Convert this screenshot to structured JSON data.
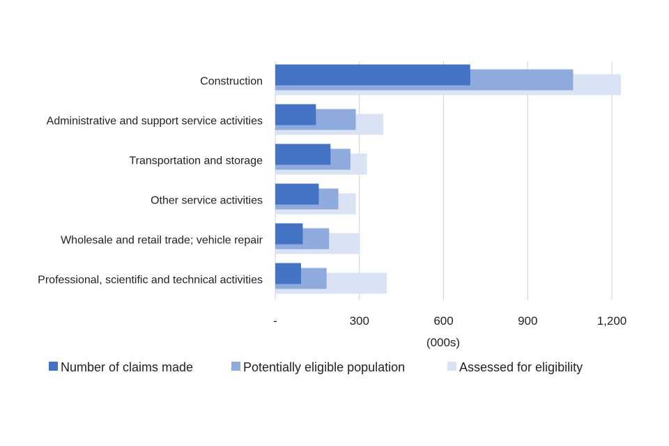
{
  "chart_data": {
    "type": "bar",
    "orientation": "horizontal",
    "categories": [
      "Construction",
      "Administrative and support service activities",
      "Transportation and storage",
      "Other service activities",
      "Wholesale and retail trade; vehicle repair",
      "Professional, scientific and technical activities"
    ],
    "series": [
      {
        "name": "Number of claims made",
        "values": [
          695,
          145,
          197,
          155,
          98,
          92
        ]
      },
      {
        "name": "Potentially eligible population",
        "values": [
          1062,
          287,
          268,
          225,
          192,
          183
        ]
      },
      {
        "name": "Assessed for eligibility",
        "values": [
          1232,
          385,
          327,
          287,
          302,
          398
        ]
      }
    ],
    "colors": [
      "#4472c4",
      "#8faadc",
      "#dae3f3"
    ],
    "xlim": [
      0,
      1200
    ],
    "xticks": [
      0,
      300,
      600,
      900,
      1200
    ],
    "xtick_labels": [
      "-",
      "300",
      "600",
      "900",
      "1,200"
    ],
    "xlabel": "(000s)",
    "gridlines": true,
    "legend_position": "bottom"
  }
}
